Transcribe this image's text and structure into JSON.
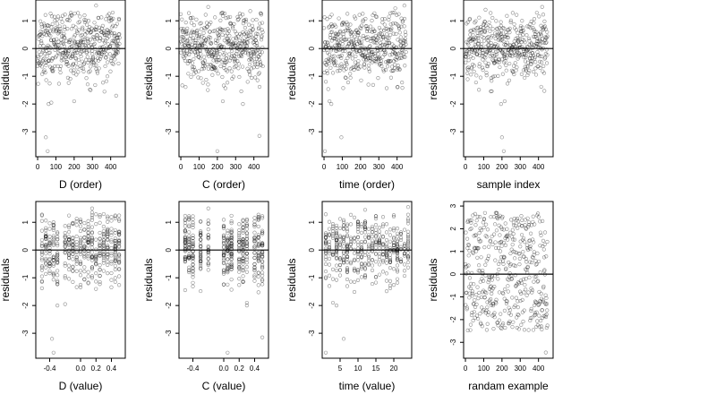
{
  "chart_data": [
    {
      "type": "scatter",
      "xlabel": "D (order)",
      "ylabel": "residuals",
      "xlim": [
        -10,
        480
      ],
      "ylim": [
        -3.9,
        1.75
      ],
      "xticks": [
        0,
        100,
        200,
        300,
        400
      ],
      "yticks": [
        -3,
        -2,
        -1,
        0,
        1
      ],
      "reference_line_y": 0,
      "gen": {
        "kind": "order",
        "n": 450,
        "std": 0.6,
        "seed": 11,
        "outliers": [
          [
            45,
            -3.2
          ],
          [
            55,
            -3.7
          ],
          [
            60,
            -2.0
          ],
          [
            75,
            -1.95
          ],
          [
            200,
            -1.9
          ],
          [
            290,
            -1.5
          ],
          [
            430,
            -1.7
          ],
          [
            320,
            1.55
          ]
        ]
      }
    },
    {
      "type": "scatter",
      "xlabel": "C (order)",
      "ylabel": "residuals",
      "xlim": [
        -10,
        480
      ],
      "ylim": [
        -3.9,
        1.75
      ],
      "xticks": [
        0,
        100,
        200,
        300,
        400
      ],
      "yticks": [
        -3,
        -2,
        -1,
        0,
        1
      ],
      "reference_line_y": 0,
      "gen": {
        "kind": "order",
        "n": 450,
        "std": 0.6,
        "seed": 23,
        "outliers": [
          [
            200,
            -3.7
          ],
          [
            430,
            -3.15
          ],
          [
            340,
            -2.0
          ],
          [
            230,
            -1.9
          ],
          [
            150,
            1.5
          ],
          [
            380,
            1.35
          ]
        ]
      }
    },
    {
      "type": "scatter",
      "xlabel": "time (order)",
      "ylabel": "residuals",
      "xlim": [
        -10,
        480
      ],
      "ylim": [
        -3.9,
        1.75
      ],
      "xticks": [
        0,
        100,
        200,
        300,
        400
      ],
      "yticks": [
        -3,
        -2,
        -1,
        0,
        1
      ],
      "reference_line_y": 0,
      "gen": {
        "kind": "order",
        "n": 450,
        "std": 0.6,
        "seed": 37,
        "outliers": [
          [
            5,
            -3.7
          ],
          [
            95,
            -3.2
          ],
          [
            40,
            -2.0
          ],
          [
            30,
            -1.9
          ],
          [
            440,
            1.55
          ],
          [
            390,
            1.45
          ]
        ]
      }
    },
    {
      "type": "scatter",
      "xlabel": "sample index",
      "ylabel": "residuals",
      "xlim": [
        -10,
        480
      ],
      "ylim": [
        -3.9,
        1.75
      ],
      "xticks": [
        0,
        100,
        200,
        300,
        400
      ],
      "yticks": [
        -3,
        -2,
        -1,
        0,
        1
      ],
      "reference_line_y": 0,
      "gen": {
        "kind": "order",
        "n": 450,
        "std": 0.6,
        "seed": 41,
        "outliers": [
          [
            200,
            -3.2
          ],
          [
            210,
            -3.7
          ],
          [
            195,
            -2.0
          ],
          [
            215,
            -1.9
          ],
          [
            420,
            1.5
          ],
          [
            110,
            1.4
          ]
        ]
      }
    },
    {
      "type": "scatter",
      "xlabel": "D (value)",
      "ylabel": "residuals",
      "xlim": [
        -0.58,
        0.58
      ],
      "ylim": [
        -3.9,
        1.75
      ],
      "xticks": [
        -0.4,
        0.0,
        0.2,
        0.4
      ],
      "xtick_labels": [
        "-0.4",
        "0.0",
        "0.2",
        "0.4"
      ],
      "yticks": [
        -3,
        -2,
        -1,
        0,
        1
      ],
      "reference_line_y": 0,
      "gen": {
        "kind": "columns",
        "levels": [
          -0.5,
          -0.45,
          -0.4,
          -0.35,
          -0.3,
          -0.2,
          -0.15,
          -0.1,
          -0.05,
          0.0,
          0.05,
          0.1,
          0.15,
          0.2,
          0.25,
          0.3,
          0.35,
          0.4,
          0.45,
          0.5
        ],
        "n": 450,
        "std": 0.6,
        "seed": 53,
        "outliers": [
          [
            -0.37,
            -3.2
          ],
          [
            -0.35,
            -3.7
          ],
          [
            -0.3,
            -2.0
          ],
          [
            -0.2,
            -1.95
          ],
          [
            0.15,
            1.5
          ],
          [
            0.15,
            1.35
          ]
        ]
      }
    },
    {
      "type": "scatter",
      "xlabel": "C (value)",
      "ylabel": "residuals",
      "xlim": [
        -0.58,
        0.58
      ],
      "ylim": [
        -3.9,
        1.75
      ],
      "xticks": [
        -0.4,
        0.0,
        0.2,
        0.4
      ],
      "xtick_labels": [
        "-0.4",
        "0.0",
        "0.2",
        "0.4"
      ],
      "yticks": [
        -3,
        -2,
        -1,
        0,
        1
      ],
      "reference_line_y": 0,
      "gen": {
        "kind": "columns",
        "levels": [
          -0.5,
          -0.45,
          -0.4,
          -0.3,
          -0.2,
          0.0,
          0.05,
          0.1,
          0.2,
          0.25,
          0.3,
          0.4,
          0.45,
          0.5
        ],
        "n": 450,
        "std": 0.6,
        "seed": 67,
        "outliers": [
          [
            0.05,
            -3.7
          ],
          [
            0.5,
            -3.15
          ],
          [
            0.3,
            -2.0
          ],
          [
            0.3,
            -1.9
          ],
          [
            -0.2,
            1.5
          ]
        ]
      }
    },
    {
      "type": "scatter",
      "xlabel": "time (value)",
      "ylabel": "residuals",
      "xlim": [
        0,
        25
      ],
      "ylim": [
        -3.9,
        1.75
      ],
      "xticks": [
        5,
        10,
        15,
        20
      ],
      "yticks": [
        -3,
        -2,
        -1,
        0,
        1
      ],
      "reference_line_y": 0,
      "gen": {
        "kind": "columns",
        "levels": [
          1,
          2,
          3,
          4,
          5,
          6,
          7,
          8,
          9,
          10,
          11,
          12,
          13,
          14,
          15,
          16,
          17,
          18,
          19,
          20,
          21,
          22,
          23,
          24
        ],
        "n": 450,
        "std": 0.6,
        "seed": 79,
        "outliers": [
          [
            1,
            -3.7
          ],
          [
            6,
            -3.2
          ],
          [
            4,
            -2.0
          ],
          [
            3,
            -1.9
          ],
          [
            24,
            1.55
          ],
          [
            12,
            1.45
          ]
        ]
      }
    },
    {
      "type": "scatter",
      "xlabel": "randam example",
      "ylabel": "residuals",
      "xlim": [
        -10,
        480
      ],
      "ylim": [
        -3.7,
        3.2
      ],
      "xticks": [
        0,
        100,
        200,
        300,
        400
      ],
      "yticks": [
        -3,
        -2,
        -1,
        0,
        1,
        2,
        3
      ],
      "reference_line_y": 0,
      "gen": {
        "kind": "uniform",
        "n": 450,
        "lo": -2.5,
        "hi": 2.7,
        "seed": 97,
        "outliers": [
          [
            440,
            -3.45
          ]
        ]
      }
    }
  ]
}
